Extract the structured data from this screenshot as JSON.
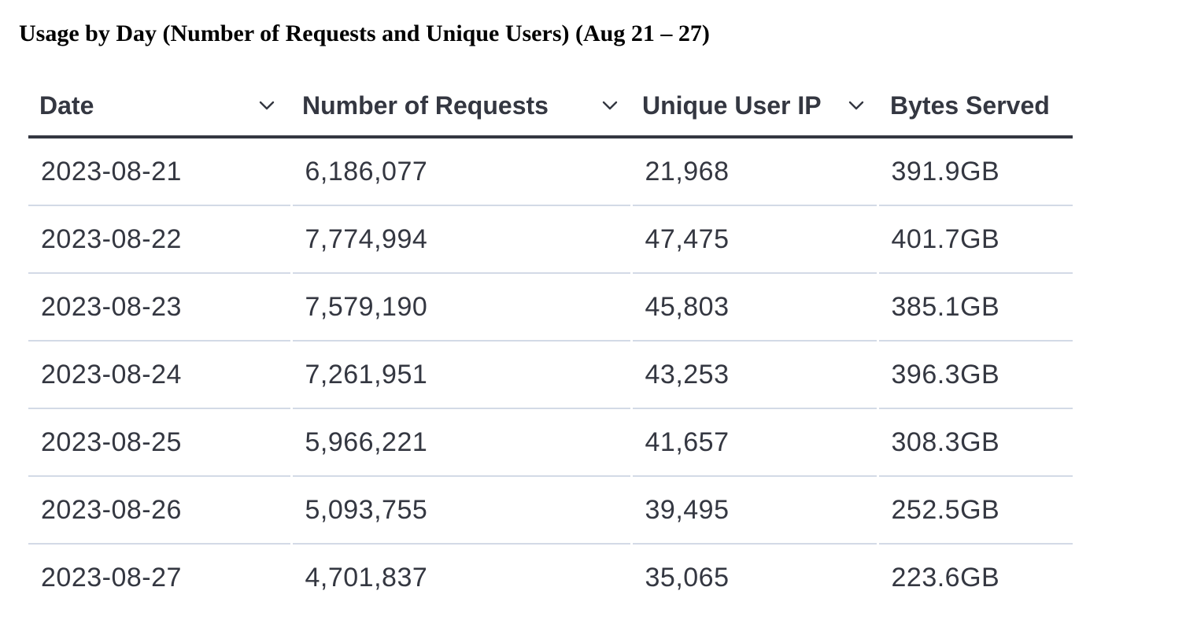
{
  "title": "Usage by Day (Number of Requests and Unique Users) (Aug 21 – 27)",
  "table": {
    "headers": [
      {
        "label": "Date",
        "icon": "chevron-down-icon"
      },
      {
        "label": "Number of Requests",
        "icon": "chevron-down-icon"
      },
      {
        "label": "Unique User IP",
        "icon": "chevron-down-icon"
      },
      {
        "label": "Bytes Served"
      }
    ],
    "rows": [
      [
        "2023-08-21",
        "6,186,077",
        "21,968",
        "391.9GB"
      ],
      [
        "2023-08-22",
        "7,774,994",
        "47,475",
        "401.7GB"
      ],
      [
        "2023-08-23",
        "7,579,190",
        "45,803",
        "385.1GB"
      ],
      [
        "2023-08-24",
        "7,261,951",
        "43,253",
        "396.3GB"
      ],
      [
        "2023-08-25",
        "5,966,221",
        "41,657",
        "308.3GB"
      ],
      [
        "2023-08-26",
        "5,093,755",
        "39,495",
        "252.5GB"
      ],
      [
        "2023-08-27",
        "4,701,837",
        "35,065",
        "223.6GB"
      ]
    ]
  },
  "colors": {
    "text": "#343741",
    "row_divider": "#d3dae6",
    "header_rule": "#343741"
  }
}
